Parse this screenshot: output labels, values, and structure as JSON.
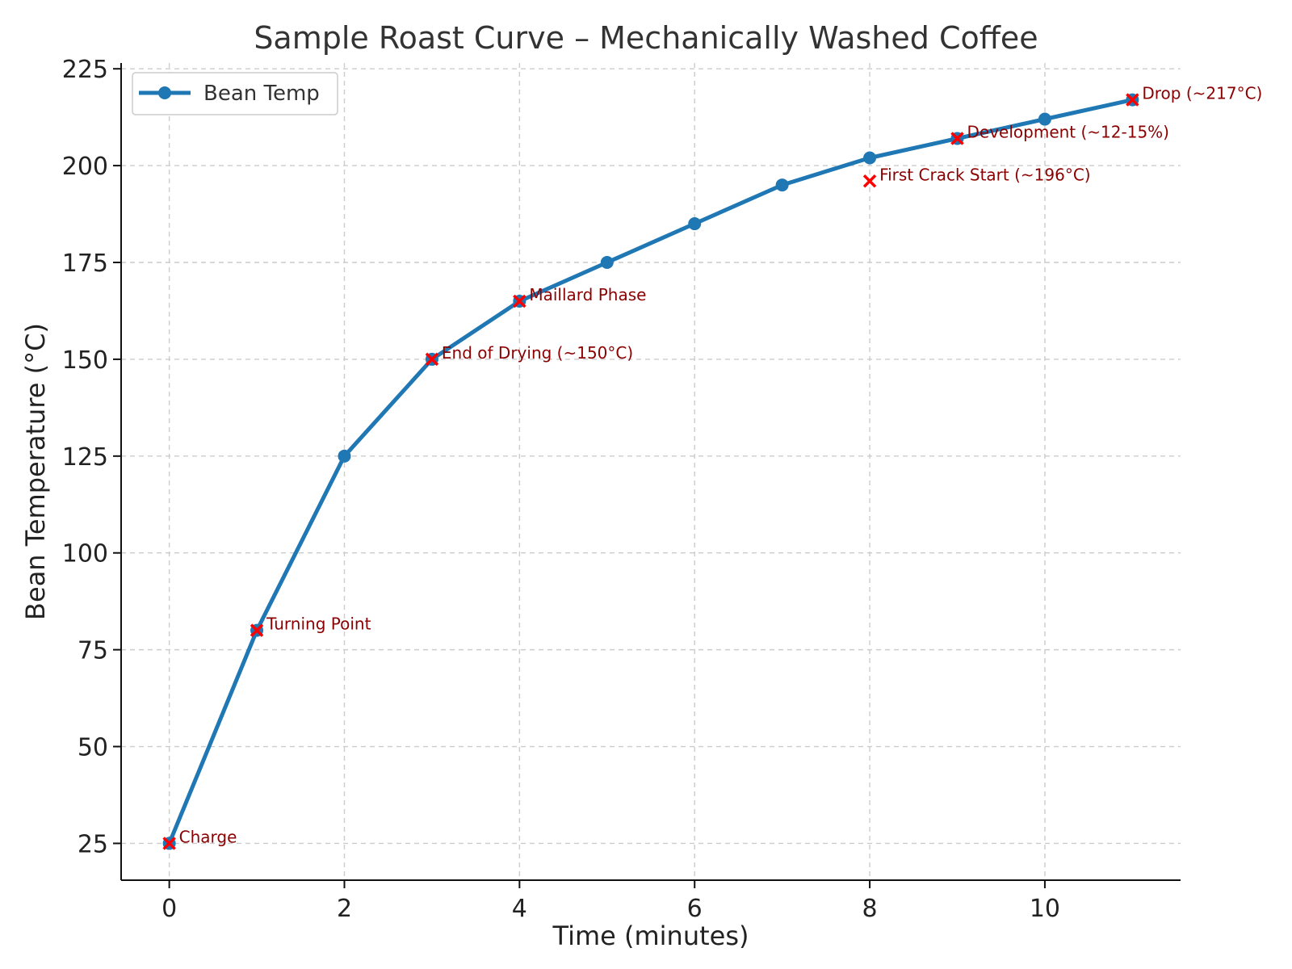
{
  "chart_data": {
    "type": "line",
    "title": "Sample Roast Curve – Mechanically Washed Coffee",
    "xlabel": "Time (minutes)",
    "ylabel": "Bean Temperature (°C)",
    "xlim": [
      -0.55,
      11.55
    ],
    "ylim": [
      15.5,
      226.5
    ],
    "xticks": [
      0,
      2,
      4,
      6,
      8,
      10
    ],
    "yticks": [
      25,
      50,
      75,
      100,
      125,
      150,
      175,
      200,
      225
    ],
    "grid": true,
    "legend_position": "top-left",
    "series": [
      {
        "name": "Bean Temp",
        "color": "#1f77b4",
        "x": [
          0,
          1,
          2,
          3,
          4,
          5,
          6,
          7,
          8,
          9,
          10,
          11
        ],
        "values": [
          25,
          80,
          125,
          150,
          165,
          175,
          185,
          195,
          202,
          207,
          212,
          217
        ]
      }
    ],
    "annotations": [
      {
        "x": 0,
        "y": 25,
        "text": "Charge"
      },
      {
        "x": 1,
        "y": 80,
        "text": "Turning Point"
      },
      {
        "x": 3,
        "y": 150,
        "text": "End of Drying (~150°C)"
      },
      {
        "x": 4,
        "y": 165,
        "text": "Maillard Phase"
      },
      {
        "x": 8,
        "y": 196,
        "text": "First Crack Start (~196°C)"
      },
      {
        "x": 9,
        "y": 207,
        "text": "Development (~12-15%)"
      },
      {
        "x": 11,
        "y": 217,
        "text": "Drop (~217°C)"
      }
    ],
    "annotation_color": "#8b0000",
    "marker_color": "#ff0000"
  }
}
